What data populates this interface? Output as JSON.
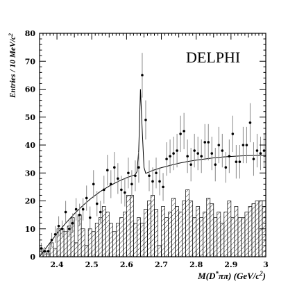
{
  "chart_data": {
    "type": "scatter",
    "experiment_label": "DELPHI",
    "xlabel": "M(D*ππ) (GeV/c²)",
    "xlabel_parts": {
      "pre": "M(D",
      "sup": "*",
      "mid": "ππ)  (GeV/c",
      "sup2": "2",
      "post": ")"
    },
    "ylabel": "Entries / 10 MeV/c²",
    "ylabel_parts": {
      "pre": "Entries / 10 MeV/c",
      "sup": "2"
    },
    "xlim": [
      2.35,
      3.0
    ],
    "ylim": [
      0,
      80
    ],
    "x_ticks": [
      2.4,
      2.5,
      2.6,
      2.7,
      2.8,
      2.9,
      3.0
    ],
    "x_tick_labels": [
      "2.4",
      "2.5",
      "2.6",
      "2.7",
      "2.8",
      "2.9",
      "3"
    ],
    "y_ticks": [
      0,
      10,
      20,
      30,
      40,
      50,
      60,
      70,
      80
    ],
    "y_tick_labels": [
      "0",
      "10",
      "20",
      "30",
      "40",
      "50",
      "60",
      "70",
      "80"
    ],
    "bin_width": 0.01,
    "series": [
      {
        "style": "points-with-error-bars",
        "x": [
          2.355,
          2.365,
          2.375,
          2.385,
          2.395,
          2.405,
          2.415,
          2.425,
          2.435,
          2.445,
          2.455,
          2.465,
          2.475,
          2.485,
          2.495,
          2.505,
          2.515,
          2.525,
          2.535,
          2.545,
          2.555,
          2.565,
          2.575,
          2.585,
          2.595,
          2.605,
          2.615,
          2.625,
          2.635,
          2.645,
          2.655,
          2.665,
          2.675,
          2.685,
          2.695,
          2.705,
          2.715,
          2.725,
          2.735,
          2.745,
          2.755,
          2.765,
          2.775,
          2.785,
          2.795,
          2.805,
          2.815,
          2.825,
          2.835,
          2.845,
          2.855,
          2.865,
          2.875,
          2.885,
          2.895,
          2.905,
          2.915,
          2.925,
          2.935,
          2.945,
          2.955,
          2.965,
          2.975,
          2.985,
          2.995
        ],
        "y": [
          3,
          2,
          2,
          6,
          8,
          11,
          10,
          16,
          10,
          12,
          17,
          15,
          17,
          21,
          14,
          26,
          19,
          16,
          24,
          31,
          26,
          32,
          28,
          24,
          23,
          30,
          26,
          29,
          32,
          65,
          49,
          29,
          27,
          30,
          27,
          25,
          35,
          36,
          37,
          38,
          44,
          45,
          36,
          33,
          38,
          37,
          36,
          41,
          41,
          37,
          33,
          40,
          38,
          32,
          36,
          44,
          34,
          34,
          40,
          40,
          48,
          35,
          38,
          37,
          38
        ],
        "errors": [
          2,
          1.5,
          1.5,
          2.5,
          3,
          3.5,
          3,
          4,
          3,
          3.5,
          4,
          4,
          4,
          4.5,
          4,
          5,
          4.5,
          4,
          5,
          5.5,
          5,
          5.5,
          5.5,
          5,
          5,
          5.5,
          5,
          5.5,
          5.5,
          8,
          7,
          5.5,
          5,
          5.5,
          5,
          5,
          6,
          6,
          6,
          6,
          6.5,
          6.5,
          6,
          6,
          6,
          6,
          6,
          6.5,
          6.5,
          6,
          6,
          6.5,
          6,
          5.5,
          6,
          6.5,
          6,
          6,
          6.5,
          6.5,
          7,
          6,
          6,
          6,
          6
        ]
      },
      {
        "style": "hatched-histogram",
        "x": [
          2.355,
          2.365,
          2.375,
          2.385,
          2.395,
          2.405,
          2.415,
          2.425,
          2.435,
          2.445,
          2.455,
          2.465,
          2.475,
          2.485,
          2.495,
          2.505,
          2.515,
          2.525,
          2.535,
          2.545,
          2.555,
          2.565,
          2.575,
          2.585,
          2.595,
          2.605,
          2.615,
          2.625,
          2.635,
          2.645,
          2.655,
          2.665,
          2.675,
          2.685,
          2.695,
          2.705,
          2.715,
          2.725,
          2.735,
          2.745,
          2.755,
          2.765,
          2.775,
          2.785,
          2.795,
          2.805,
          2.815,
          2.825,
          2.835,
          2.845,
          2.855,
          2.865,
          2.875,
          2.885,
          2.895,
          2.905,
          2.915,
          2.925,
          2.935,
          2.945,
          2.955,
          2.965,
          2.975,
          2.985,
          2.995
        ],
        "y": [
          3,
          2,
          1,
          5,
          3,
          10,
          10,
          9,
          11,
          14,
          5,
          15,
          10,
          4,
          10,
          9,
          12,
          14,
          18,
          16,
          12,
          9,
          12,
          14,
          16,
          22,
          22,
          12,
          14,
          12,
          17,
          20,
          22,
          17,
          4,
          18,
          14,
          16,
          21,
          18,
          16,
          20,
          24,
          20,
          14,
          18,
          14,
          16,
          21,
          19,
          14,
          16,
          12,
          16,
          20,
          14,
          18,
          14,
          14,
          16,
          18,
          19,
          20,
          20,
          18
        ]
      },
      {
        "style": "fit-curve",
        "x": [
          2.35,
          2.375,
          2.4,
          2.425,
          2.45,
          2.475,
          2.5,
          2.525,
          2.55,
          2.575,
          2.6,
          2.625,
          2.63,
          2.635,
          2.64,
          2.645,
          2.65,
          2.655,
          2.66,
          2.675,
          2.7,
          2.725,
          2.75,
          2.775,
          2.8,
          2.825,
          2.85,
          2.875,
          2.9,
          2.925,
          2.95,
          2.975,
          3.0
        ],
        "y": [
          0,
          4.2,
          8.3,
          12.0,
          15.4,
          18.4,
          21.1,
          23.4,
          25.3,
          26.9,
          28.3,
          29.4,
          30.5,
          38,
          60,
          45,
          32,
          29.9,
          30.1,
          30.9,
          31.9,
          32.7,
          33.5,
          34.1,
          34.6,
          35.0,
          35.4,
          35.7,
          35.9,
          36.1,
          36.2,
          36.3,
          36.3
        ]
      }
    ]
  }
}
